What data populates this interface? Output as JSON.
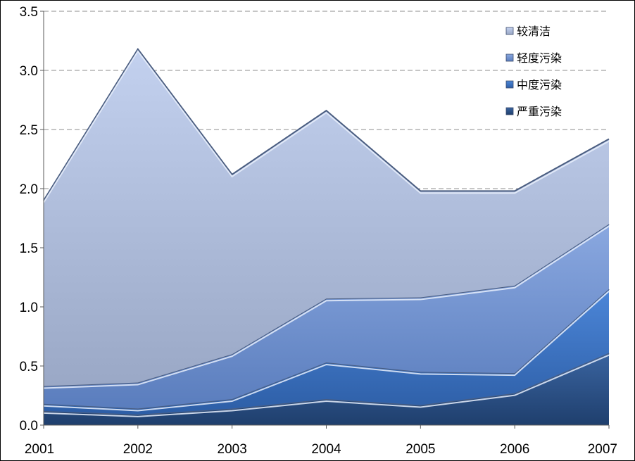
{
  "chart_data": {
    "type": "area",
    "stacked": true,
    "categories": [
      "2001",
      "2002",
      "2003",
      "2004",
      "2005",
      "2006",
      "2007"
    ],
    "series": [
      {
        "name": "严重污染",
        "values": [
          0.12,
          0.09,
          0.14,
          0.22,
          0.17,
          0.27,
          0.61
        ],
        "color": "#2a4e80"
      },
      {
        "name": "中度污染",
        "values": [
          0.06,
          0.05,
          0.08,
          0.31,
          0.28,
          0.17,
          0.54
        ],
        "color": "#3a6fbf"
      },
      {
        "name": "轻度污染",
        "values": [
          0.15,
          0.22,
          0.38,
          0.54,
          0.63,
          0.74,
          0.55
        ],
        "color": "#6e90cf"
      },
      {
        "name": "较清洁",
        "values": [
          1.57,
          2.82,
          1.52,
          1.59,
          0.9,
          0.8,
          0.72
        ],
        "color": "#b1c0e0"
      }
    ],
    "yticks": [
      "0.0",
      "0.5",
      "1.0",
      "1.5",
      "2.0",
      "2.5",
      "3.0",
      "3.5"
    ],
    "ylim": [
      0,
      3.5
    ],
    "grid": "horizontal-dashed",
    "legend_position": "top-right",
    "title": "",
    "xlabel": "",
    "ylabel": ""
  }
}
